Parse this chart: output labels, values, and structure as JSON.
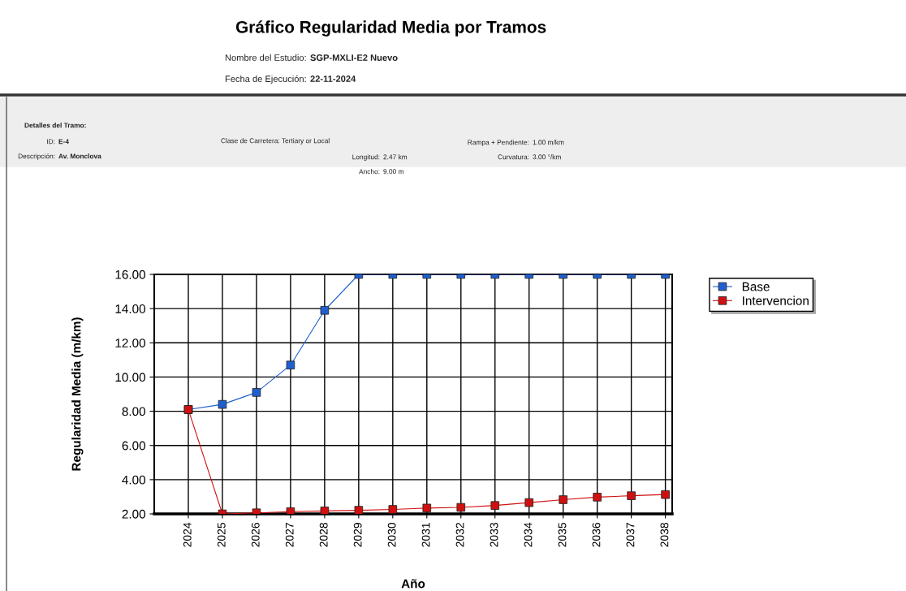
{
  "chart_data": {
    "type": "line",
    "title": "Gráfico Regularidad Media por Tramos",
    "xlabel": "Año",
    "ylabel": "Regularidad Media (m/km)",
    "categories": [
      "2024",
      "2025",
      "2026",
      "2027",
      "2028",
      "2029",
      "2030",
      "2031",
      "2032",
      "2033",
      "2034",
      "2035",
      "2036",
      "2037",
      "2038"
    ],
    "series": [
      {
        "name": "Base",
        "color": "#1f5fd0",
        "values": [
          8.1,
          8.4,
          9.1,
          10.7,
          13.9,
          16,
          16,
          16,
          16,
          16,
          16,
          16,
          16,
          16,
          16
        ]
      },
      {
        "name": "Intervencion",
        "color": "#d01010",
        "values": [
          8.1,
          2.0,
          2.06,
          2.13,
          2.17,
          2.21,
          2.26,
          2.34,
          2.38,
          2.49,
          2.66,
          2.83,
          2.98,
          3.06,
          3.13
        ]
      }
    ],
    "ylim": [
      2,
      16
    ],
    "yticks": [
      {
        "value": 2,
        "label": "2.00"
      },
      {
        "value": 4,
        "label": "4.00"
      },
      {
        "value": 6,
        "label": "6.00"
      },
      {
        "value": 8,
        "label": "8.00"
      },
      {
        "value": 10,
        "label": "10.00"
      },
      {
        "value": 12,
        "label": "12.00"
      },
      {
        "value": 14,
        "label": "14.00"
      },
      {
        "value": 16,
        "label": "16.00"
      }
    ],
    "grid": true,
    "legend": "top right",
    "marker": "square",
    "line_style": "solid",
    "annotations": [
      "Nombre del Estudio:",
      "SGP-MXLI-E2 Nuevo",
      "Fecha de Ejecución:",
      "22-11-2024",
      "Detalles del Tramo:",
      "ID:",
      "E-4",
      "Descripción:",
      "Av. Monclova",
      "Clase de Carretera: Tertiary or Local",
      "Longitud:",
      "2.47 km",
      "Ancho:",
      "9.00 m",
      "Rampa + Pendiente:",
      "1.00 m/km",
      "Curvatura:",
      "3.00 °/km"
    ]
  }
}
